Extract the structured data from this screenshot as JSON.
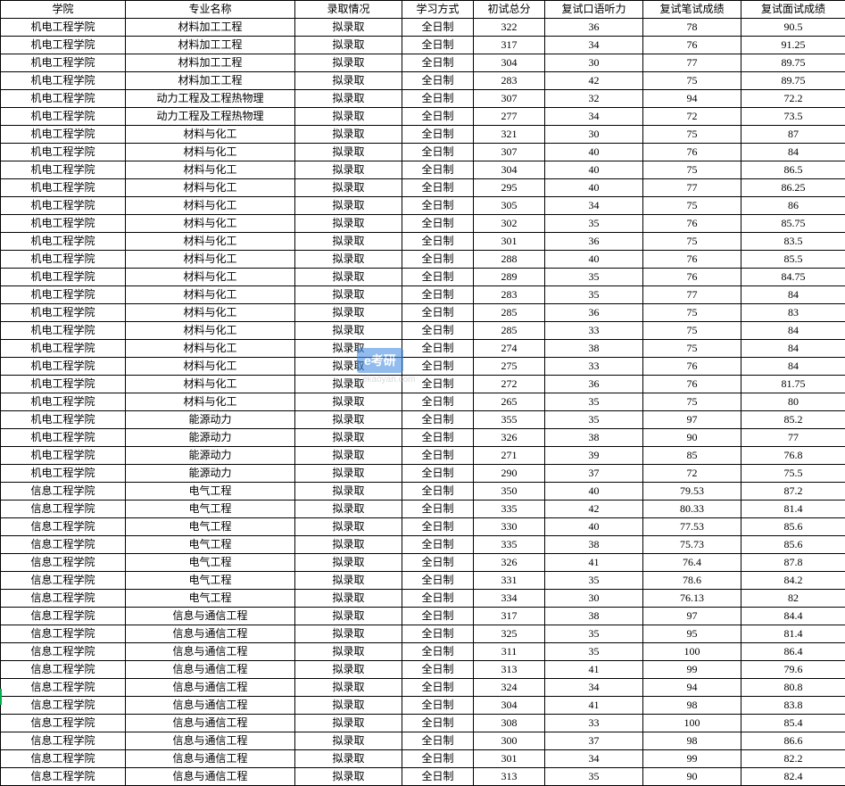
{
  "columns": [
    "学院",
    "专业名称",
    "录取情况",
    "学习方式",
    "初试总分",
    "复试口语听力",
    "复试笔试成绩",
    "复试面试成绩"
  ],
  "rows": [
    [
      "机电工程学院",
      "材料加工工程",
      "拟录取",
      "全日制",
      "322",
      "36",
      "78",
      "90.5"
    ],
    [
      "机电工程学院",
      "材料加工工程",
      "拟录取",
      "全日制",
      "317",
      "34",
      "76",
      "91.25"
    ],
    [
      "机电工程学院",
      "材料加工工程",
      "拟录取",
      "全日制",
      "304",
      "30",
      "77",
      "89.75"
    ],
    [
      "机电工程学院",
      "材料加工工程",
      "拟录取",
      "全日制",
      "283",
      "42",
      "75",
      "89.75"
    ],
    [
      "机电工程学院",
      "动力工程及工程热物理",
      "拟录取",
      "全日制",
      "307",
      "32",
      "94",
      "72.2"
    ],
    [
      "机电工程学院",
      "动力工程及工程热物理",
      "拟录取",
      "全日制",
      "277",
      "34",
      "72",
      "73.5"
    ],
    [
      "机电工程学院",
      "材料与化工",
      "拟录取",
      "全日制",
      "321",
      "30",
      "75",
      "87"
    ],
    [
      "机电工程学院",
      "材料与化工",
      "拟录取",
      "全日制",
      "307",
      "40",
      "76",
      "84"
    ],
    [
      "机电工程学院",
      "材料与化工",
      "拟录取",
      "全日制",
      "304",
      "40",
      "75",
      "86.5"
    ],
    [
      "机电工程学院",
      "材料与化工",
      "拟录取",
      "全日制",
      "295",
      "40",
      "77",
      "86.25"
    ],
    [
      "机电工程学院",
      "材料与化工",
      "拟录取",
      "全日制",
      "305",
      "34",
      "75",
      "86"
    ],
    [
      "机电工程学院",
      "材料与化工",
      "拟录取",
      "全日制",
      "302",
      "35",
      "76",
      "85.75"
    ],
    [
      "机电工程学院",
      "材料与化工",
      "拟录取",
      "全日制",
      "301",
      "36",
      "75",
      "83.5"
    ],
    [
      "机电工程学院",
      "材料与化工",
      "拟录取",
      "全日制",
      "288",
      "40",
      "76",
      "85.5"
    ],
    [
      "机电工程学院",
      "材料与化工",
      "拟录取",
      "全日制",
      "289",
      "35",
      "76",
      "84.75"
    ],
    [
      "机电工程学院",
      "材料与化工",
      "拟录取",
      "全日制",
      "283",
      "35",
      "77",
      "84"
    ],
    [
      "机电工程学院",
      "材料与化工",
      "拟录取",
      "全日制",
      "285",
      "36",
      "75",
      "83"
    ],
    [
      "机电工程学院",
      "材料与化工",
      "拟录取",
      "全日制",
      "285",
      "33",
      "75",
      "84"
    ],
    [
      "机电工程学院",
      "材料与化工",
      "拟录取",
      "全日制",
      "274",
      "38",
      "75",
      "84"
    ],
    [
      "机电工程学院",
      "材料与化工",
      "拟录取",
      "全日制",
      "275",
      "33",
      "76",
      "84"
    ],
    [
      "机电工程学院",
      "材料与化工",
      "拟录取",
      "全日制",
      "272",
      "36",
      "76",
      "81.75"
    ],
    [
      "机电工程学院",
      "材料与化工",
      "拟录取",
      "全日制",
      "265",
      "35",
      "75",
      "80"
    ],
    [
      "机电工程学院",
      "能源动力",
      "拟录取",
      "全日制",
      "355",
      "35",
      "97",
      "85.2"
    ],
    [
      "机电工程学院",
      "能源动力",
      "拟录取",
      "全日制",
      "326",
      "38",
      "90",
      "77"
    ],
    [
      "机电工程学院",
      "能源动力",
      "拟录取",
      "全日制",
      "271",
      "39",
      "85",
      "76.8"
    ],
    [
      "机电工程学院",
      "能源动力",
      "拟录取",
      "全日制",
      "290",
      "37",
      "72",
      "75.5"
    ],
    [
      "信息工程学院",
      "电气工程",
      "拟录取",
      "全日制",
      "350",
      "40",
      "79.53",
      "87.2"
    ],
    [
      "信息工程学院",
      "电气工程",
      "拟录取",
      "全日制",
      "335",
      "42",
      "80.33",
      "81.4"
    ],
    [
      "信息工程学院",
      "电气工程",
      "拟录取",
      "全日制",
      "330",
      "40",
      "77.53",
      "85.6"
    ],
    [
      "信息工程学院",
      "电气工程",
      "拟录取",
      "全日制",
      "335",
      "38",
      "75.73",
      "85.6"
    ],
    [
      "信息工程学院",
      "电气工程",
      "拟录取",
      "全日制",
      "326",
      "41",
      "76.4",
      "87.8"
    ],
    [
      "信息工程学院",
      "电气工程",
      "拟录取",
      "全日制",
      "331",
      "35",
      "78.6",
      "84.2"
    ],
    [
      "信息工程学院",
      "电气工程",
      "拟录取",
      "全日制",
      "334",
      "30",
      "76.13",
      "82"
    ],
    [
      "信息工程学院",
      "信息与通信工程",
      "拟录取",
      "全日制",
      "317",
      "38",
      "97",
      "84.4"
    ],
    [
      "信息工程学院",
      "信息与通信工程",
      "拟录取",
      "全日制",
      "325",
      "35",
      "95",
      "81.4"
    ],
    [
      "信息工程学院",
      "信息与通信工程",
      "拟录取",
      "全日制",
      "311",
      "35",
      "100",
      "86.4"
    ],
    [
      "信息工程学院",
      "信息与通信工程",
      "拟录取",
      "全日制",
      "313",
      "41",
      "99",
      "79.6"
    ],
    [
      "信息工程学院",
      "信息与通信工程",
      "拟录取",
      "全日制",
      "324",
      "34",
      "94",
      "80.8"
    ],
    [
      "信息工程学院",
      "信息与通信工程",
      "拟录取",
      "全日制",
      "304",
      "41",
      "98",
      "83.8"
    ],
    [
      "信息工程学院",
      "信息与通信工程",
      "拟录取",
      "全日制",
      "308",
      "33",
      "100",
      "85.4"
    ],
    [
      "信息工程学院",
      "信息与通信工程",
      "拟录取",
      "全日制",
      "300",
      "37",
      "98",
      "86.6"
    ],
    [
      "信息工程学院",
      "信息与通信工程",
      "拟录取",
      "全日制",
      "301",
      "34",
      "99",
      "82.2"
    ],
    [
      "信息工程学院",
      "信息与通信工程",
      "拟录取",
      "全日制",
      "313",
      "35",
      "90",
      "82.4"
    ]
  ],
  "watermark": {
    "box_text": "e考研",
    "sub_text": "ekaoyan.com"
  }
}
